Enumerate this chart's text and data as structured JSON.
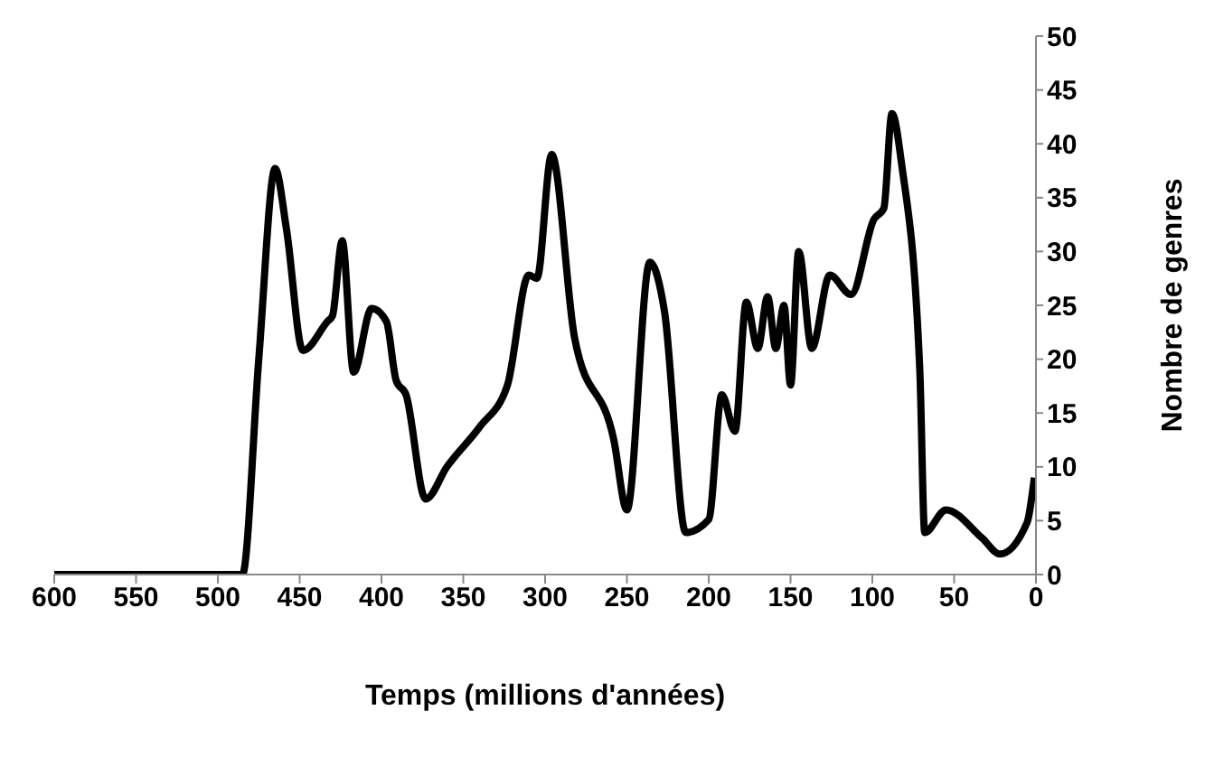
{
  "chart_data": {
    "type": "line",
    "xlabel": "Temps (millions d'années)",
    "ylabel": "Nombre de genres",
    "x": [
      600,
      500,
      485,
      475,
      465,
      458,
      448,
      433,
      430,
      424,
      417,
      406,
      397,
      391,
      385,
      373,
      360,
      340,
      323,
      310,
      305,
      296,
      282,
      258,
      250,
      236,
      227,
      214,
      200,
      192,
      184,
      177,
      170,
      164,
      159,
      154,
      150,
      145,
      137,
      126,
      113,
      99,
      93,
      88,
      82,
      71,
      68,
      55,
      33,
      22,
      5.5,
      1
    ],
    "series": [
      {
        "color": "#000000",
        "values": [
          0,
          0,
          0,
          20,
          37.7,
          32,
          20.8,
          23.5,
          24,
          31,
          18.8,
          24.7,
          23.5,
          18,
          16.7,
          7,
          10,
          13.7,
          17.6,
          27.8,
          27.5,
          39,
          22,
          12.5,
          6,
          29,
          24.4,
          3.9,
          5.1,
          16.7,
          13.3,
          25.3,
          21,
          25.8,
          21,
          25,
          17.6,
          30,
          21,
          27.8,
          26,
          33,
          34,
          42.8,
          38,
          19,
          3.9,
          6,
          3.4,
          1.9,
          4.8,
          9
        ]
      }
    ],
    "xlim": [
      600,
      0
    ],
    "xticks": [
      600,
      550,
      500,
      450,
      400,
      350,
      300,
      250,
      200,
      150,
      100,
      50,
      0
    ],
    "ylim": [
      0,
      50
    ],
    "yticks": [
      0,
      5,
      10,
      15,
      20,
      25,
      30,
      35,
      40,
      45,
      50
    ],
    "grid": false,
    "legend": false,
    "marker": "none",
    "line_style": "solid"
  }
}
